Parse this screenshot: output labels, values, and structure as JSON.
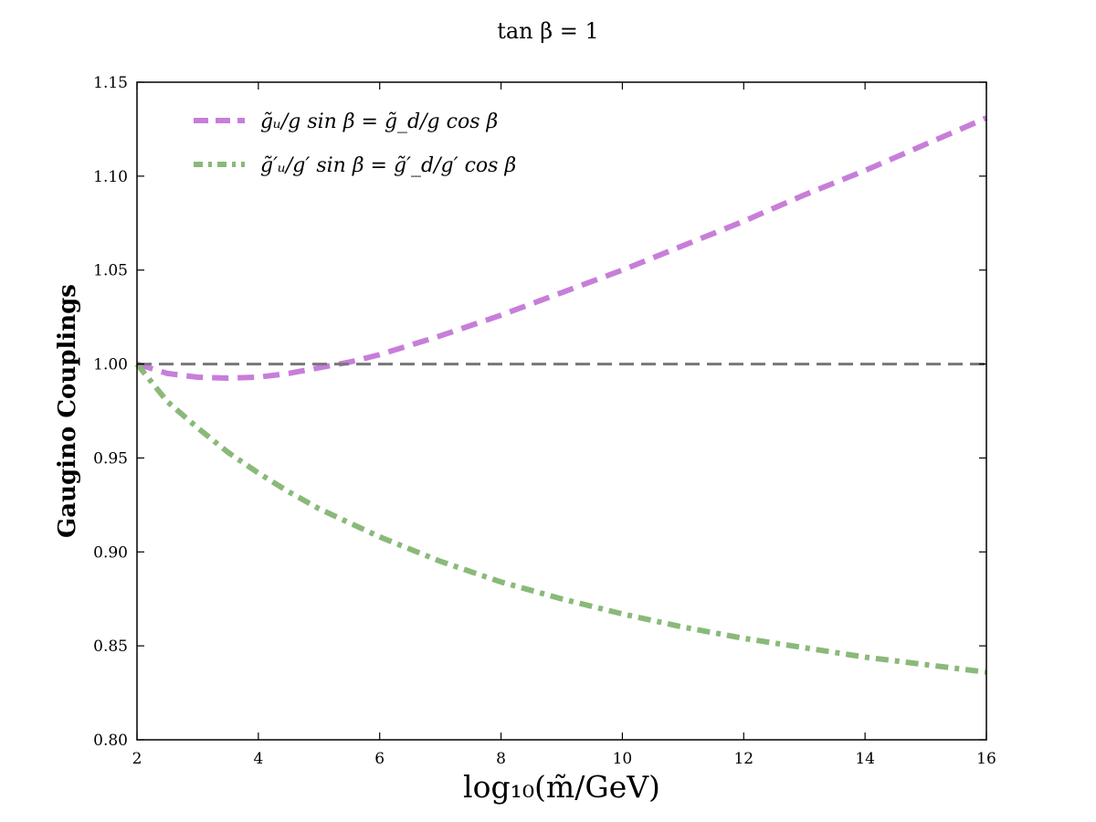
{
  "chart_data": {
    "type": "line",
    "title": "tan β = 1",
    "xlabel": "log₁₀(m̃/GeV)",
    "ylabel": "Gaugino Couplings",
    "xlim": [
      2,
      16
    ],
    "ylim": [
      0.8,
      1.15
    ],
    "xticks": [
      2,
      4,
      6,
      8,
      10,
      12,
      14,
      16
    ],
    "yticks": [
      0.8,
      0.85,
      0.9,
      0.95,
      1.0,
      1.05,
      1.1,
      1.15
    ],
    "xtick_labels": [
      "2",
      "4",
      "6",
      "8",
      "10",
      "12",
      "14",
      "16"
    ],
    "ytick_labels": [
      "0.80",
      "0.85",
      "0.90",
      "0.95",
      "1.00",
      "1.05",
      "1.10",
      "1.15"
    ],
    "grid": false,
    "legend_position": "top-left",
    "series": [
      {
        "name": "g̃ᵤ/g sin β = g̃_d/g cos β",
        "color": "#c77ed9",
        "style": "dashed",
        "x": [
          2,
          2.5,
          3,
          3.5,
          4,
          4.5,
          5,
          5.5,
          6,
          7,
          8,
          9,
          10,
          11,
          12,
          13,
          14,
          15,
          16
        ],
        "y": [
          1.0,
          0.995,
          0.993,
          0.9925,
          0.993,
          0.995,
          0.998,
          1.001,
          1.005,
          1.015,
          1.026,
          1.038,
          1.05,
          1.063,
          1.076,
          1.09,
          1.103,
          1.117,
          1.131
        ]
      },
      {
        "name": "g̃′ᵤ/g′ sin β = g̃′_d/g′ cos β",
        "color": "#8ab97a",
        "style": "dashdot",
        "x": [
          2,
          2.5,
          3,
          3.5,
          4,
          4.5,
          5,
          6,
          7,
          8,
          9,
          10,
          11,
          12,
          13,
          14,
          15,
          16
        ],
        "y": [
          1.0,
          0.98,
          0.966,
          0.953,
          0.942,
          0.932,
          0.923,
          0.908,
          0.895,
          0.884,
          0.875,
          0.867,
          0.86,
          0.854,
          0.849,
          0.844,
          0.84,
          0.836
        ]
      },
      {
        "name": "",
        "color": "#777777",
        "style": "dashed",
        "x": [
          2,
          16
        ],
        "y": [
          1.0,
          1.0
        ]
      }
    ]
  }
}
